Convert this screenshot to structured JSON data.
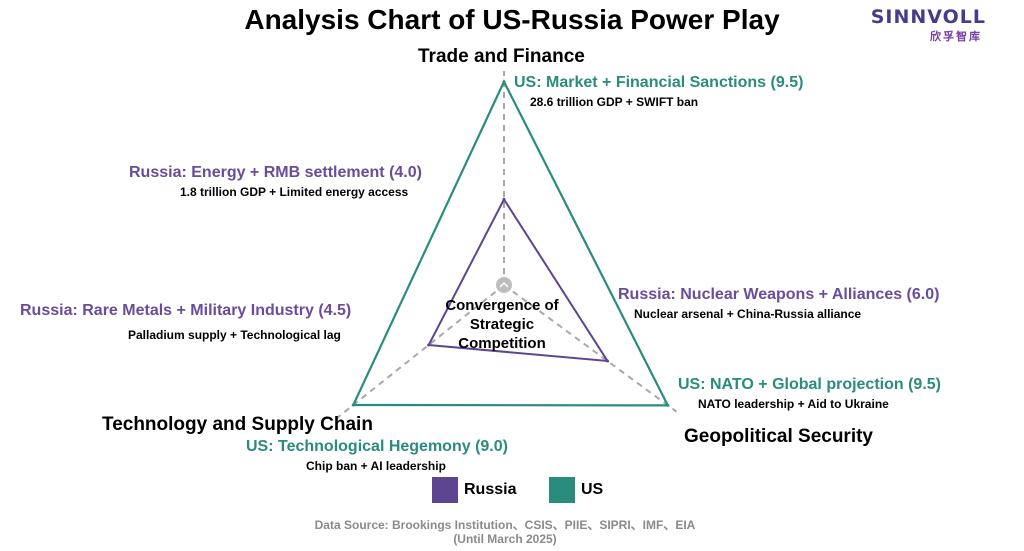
{
  "title": "Analysis Chart of US-Russia Power Play",
  "logo": {
    "text": "SINNVOLL",
    "subtext": "欣孚智库"
  },
  "colors": {
    "us": "#2a8c7c",
    "russia": "#5e4590",
    "axis": "#a8a8a8"
  },
  "chart_data": {
    "type": "radar",
    "scale_max": 10,
    "axes": [
      {
        "name": "Trade and Finance",
        "us": 9.5,
        "russia": 4.0
      },
      {
        "name": "Geopolitical Security",
        "us": 9.5,
        "russia": 6.0
      },
      {
        "name": "Technology and Supply Chain",
        "us": 9.0,
        "russia": 4.5
      }
    ],
    "series": [
      {
        "name": "US",
        "values": [
          9.5,
          9.5,
          9.0
        ]
      },
      {
        "name": "Russia",
        "values": [
          4.0,
          6.0,
          4.5
        ]
      }
    ],
    "center_label": "Convergence of Strategic Competition"
  },
  "annotations": {
    "us_trade": "US: Market + Financial Sanctions (9.5)",
    "us_trade_note": "28.6 trillion GDP + SWIFT ban",
    "ru_trade": "Russia: Energy + RMB settlement (4.0)",
    "ru_trade_note": "1.8 trillion GDP + Limited energy access",
    "ru_tech": "Russia: Rare Metals + Military Industry (4.5)",
    "ru_tech_note": "Palladium supply + Technological lag",
    "ru_geo": "Russia: Nuclear Weapons + Alliances (6.0)",
    "ru_geo_note": "Nuclear arsenal + China-Russia alliance",
    "us_geo": "US: NATO + Global projection (9.5)",
    "us_geo_note": "NATO leadership + Aid to Ukraine",
    "us_tech": "US: Technological Hegemony (9.0)",
    "us_tech_note": "Chip ban + AI leadership"
  },
  "legend": {
    "russia": "Russia",
    "us": "US"
  },
  "source": {
    "line1": "Data Source: Brookings Institution、CSIS、PIIE、SIPRI、IMF、EIA",
    "line2": "(Until March 2025)"
  }
}
